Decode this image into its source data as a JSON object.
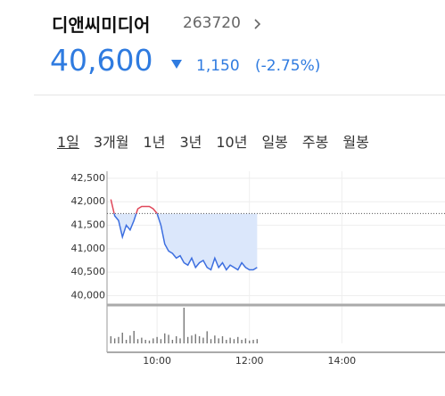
{
  "header": {
    "name": "디앤씨미디어",
    "code": "263720"
  },
  "quote": {
    "price": "40,600",
    "change": "1,150",
    "change_rate": "(-2.75%)"
  },
  "tabs": [
    "1일",
    "3개월",
    "1년",
    "3년",
    "10년",
    "일봉",
    "주봉",
    "월봉"
  ],
  "selected_tab": 0,
  "chart_data": {
    "type": "line",
    "x": [
      540,
      545,
      550,
      555,
      560,
      565,
      570,
      575,
      580,
      585,
      590,
      595,
      600,
      605,
      610,
      615,
      620,
      625,
      630,
      635,
      640,
      645,
      650,
      655,
      660,
      665,
      670,
      675,
      680,
      685,
      690,
      695,
      700,
      705,
      710,
      715,
      720,
      725,
      730
    ],
    "values": [
      42050,
      41700,
      41600,
      41250,
      41500,
      41400,
      41600,
      41850,
      41900,
      41900,
      41900,
      41850,
      41750,
      41500,
      41100,
      40950,
      40900,
      40800,
      40850,
      40700,
      40650,
      40800,
      40600,
      40700,
      40750,
      40600,
      40550,
      40800,
      40600,
      40700,
      40550,
      40650,
      40600,
      40550,
      40700,
      40600,
      40550,
      40550,
      40600
    ],
    "color": "#3d6fe0",
    "up_color": "#e0485a",
    "area_color": "#dbe7fb",
    "previous_close": 41750,
    "volume": [
      20,
      14,
      18,
      30,
      10,
      22,
      35,
      12,
      16,
      10,
      8,
      14,
      18,
      12,
      28,
      24,
      10,
      20,
      14,
      100,
      18,
      22,
      26,
      20,
      16,
      34,
      12,
      22,
      14,
      20,
      10,
      16,
      12,
      18,
      10,
      14,
      8,
      10,
      12
    ],
    "volume_color": "#777777",
    "volume_ylim": [
      0,
      100
    ],
    "xlim": [
      535,
      974
    ],
    "xticks": [
      {
        "value": 600,
        "label": "10:00"
      },
      {
        "value": 720,
        "label": "12:00"
      },
      {
        "value": 840,
        "label": "14:00"
      }
    ],
    "ylim": [
      39800,
      42650
    ],
    "yticks": [
      {
        "value": 40000,
        "label": "40,000"
      },
      {
        "value": 40500,
        "label": "40,500"
      },
      {
        "value": 41000,
        "label": "41,000"
      },
      {
        "value": 41500,
        "label": "41,500"
      },
      {
        "value": 42000,
        "label": "42,000"
      },
      {
        "value": 42500,
        "label": "42,500"
      }
    ],
    "grid": true
  }
}
